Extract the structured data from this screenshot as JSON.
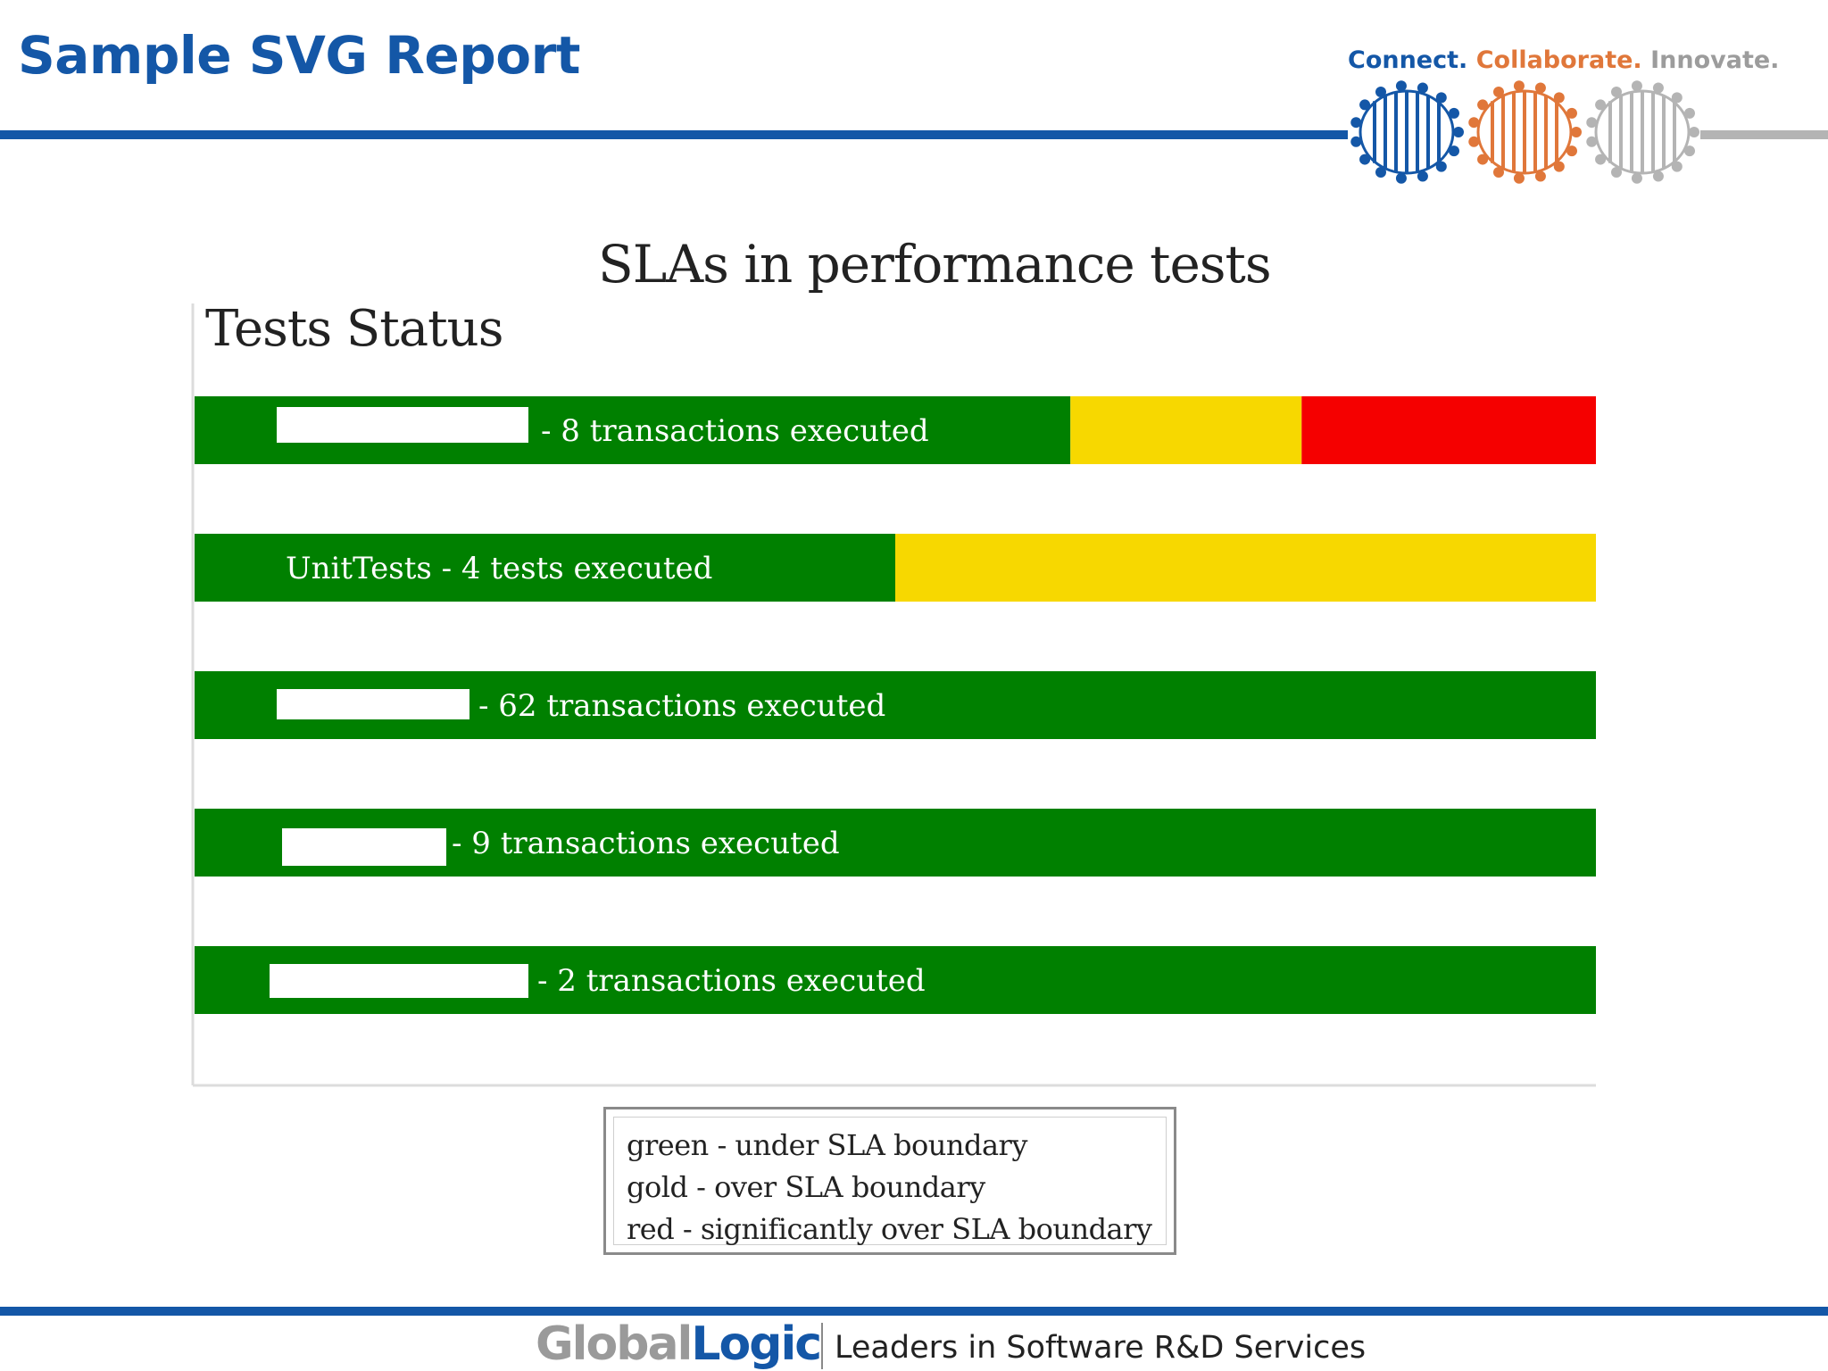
{
  "header": {
    "title": "Sample SVG Report",
    "tagline": {
      "connect": "Connect.",
      "collaborate": "Collaborate.",
      "innovate": "Innovate."
    }
  },
  "colors": {
    "brand_blue": "#1457a7",
    "brand_orange": "#e0773a",
    "brand_gray": "#b4b4b4",
    "green": "#008000",
    "gold": "#f7d800",
    "red": "#f50000"
  },
  "chart_data": {
    "type": "bar",
    "orientation": "horizontal",
    "stacked": true,
    "title": "SLAs in performance tests",
    "subtitle": "Tests Status",
    "categories": [
      "- 8 transactions executed",
      "UnitTests - 4 tests executed",
      "- 62 transactions executed",
      "- 9 transactions executed",
      "- 2 transactions executed"
    ],
    "redacted_name": [
      true,
      false,
      true,
      true,
      true
    ],
    "series": [
      {
        "name": "green",
        "values": [
          62.5,
          50,
          100,
          100,
          100
        ]
      },
      {
        "name": "gold",
        "values": [
          16.5,
          50,
          0,
          0,
          0
        ]
      },
      {
        "name": "red",
        "values": [
          21,
          0,
          0,
          0,
          0
        ]
      }
    ],
    "xlim": [
      0,
      100
    ],
    "legend": {
      "placement": "bottom-center",
      "entries": [
        "green - under SLA boundary",
        "gold - over SLA boundary",
        "red - significantly over SLA boundary"
      ]
    }
  },
  "footer": {
    "logo_part1": "Global",
    "logo_part2": "Logic",
    "slogan": "Leaders in Software R&D Services"
  }
}
